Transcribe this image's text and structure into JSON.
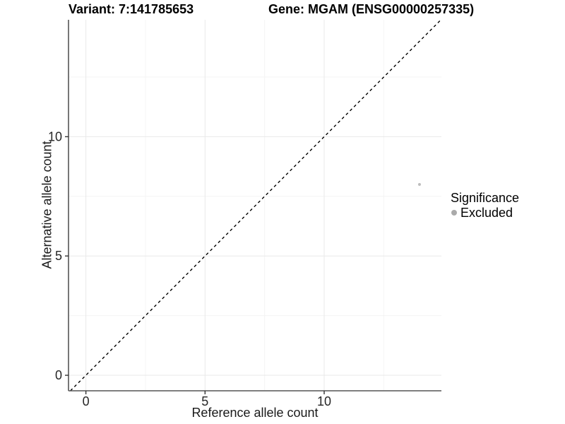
{
  "chart_data": {
    "type": "scatter",
    "title_left": "Variant: 7:141785653",
    "title_right": "Gene: MGAM (ENSG00000257335)",
    "xlabel": "Reference allele count",
    "ylabel": "Alternative allele count",
    "xlim": [
      -0.73,
      14.92
    ],
    "ylim": [
      -0.65,
      14.9
    ],
    "x_ticks": [
      0,
      5,
      10
    ],
    "y_ticks": [
      0,
      5,
      10
    ],
    "x_minor_ticks": [
      2.5,
      7.5,
      12.5
    ],
    "y_minor_ticks": [
      2.5,
      7.5,
      12.5
    ],
    "grid": true,
    "legend_position": "right",
    "reference_line": {
      "type": "identity",
      "style": "dashed",
      "color": "#000000"
    },
    "series": [
      {
        "name": "Excluded",
        "color": "#bdbdbd",
        "points": [
          [
            14,
            8
          ]
        ]
      }
    ],
    "legend": {
      "title": "Significance",
      "items": [
        {
          "label": "Excluded",
          "color": "#aaaaaa"
        }
      ]
    },
    "colors": {
      "background": "#ffffff",
      "grid_major": "#e9e9e9",
      "grid_minor": "#f4f4f4",
      "axis_line": "#555555",
      "tick": "#333333",
      "text": "#262626",
      "title": "#000000"
    }
  }
}
